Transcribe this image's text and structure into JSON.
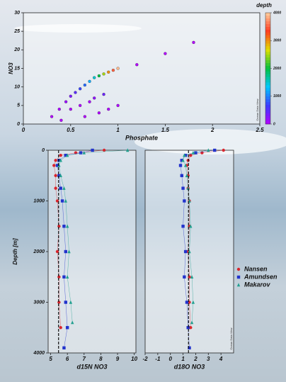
{
  "chart_data": [
    {
      "type": "scatter",
      "x_label": "Phosphate",
      "y_label": "NO3",
      "watermark": "Ocean Data View",
      "xlim": [
        0,
        2.5
      ],
      "xticks": [
        0,
        0.5,
        1,
        1.5,
        2,
        2.5
      ],
      "ylim": [
        0,
        30
      ],
      "yticks": [
        0,
        5,
        10,
        15,
        20,
        25,
        30
      ],
      "colorbar": {
        "label": "depth",
        "lim": [
          0,
          4000
        ],
        "ticks": [
          0,
          1000,
          2000,
          3000,
          4000
        ],
        "colors": [
          "#b400ff",
          "#3b3bff",
          "#00c8ff",
          "#00c040",
          "#e0e000",
          "#ff3b1f",
          "#ffd0a0"
        ]
      },
      "x": [
        0.3,
        0.38,
        0.45,
        0.5,
        0.55,
        0.6,
        0.65,
        0.7,
        0.75,
        0.8,
        0.85,
        0.9,
        0.95,
        1.0,
        0.5,
        0.6,
        0.7,
        0.8,
        0.9,
        1.0,
        0.4,
        0.65,
        0.75,
        0.85,
        1.2,
        1.5,
        1.8
      ],
      "y": [
        2,
        4,
        6,
        7.5,
        8.5,
        9.5,
        10.5,
        11.5,
        12.5,
        13,
        13.5,
        14,
        14.5,
        15,
        4,
        5,
        6,
        3,
        4,
        5,
        1,
        2,
        7,
        8,
        16,
        19,
        22
      ],
      "depth": [
        20,
        50,
        150,
        300,
        500,
        700,
        900,
        1200,
        1500,
        2000,
        2500,
        3000,
        3500,
        3900,
        30,
        40,
        60,
        20,
        25,
        35,
        10,
        15,
        200,
        400,
        10,
        5,
        5
      ]
    },
    {
      "type": "profile",
      "x_label": "d15N NO3",
      "y_label": "Depth [m]",
      "xlim": [
        4.85,
        10.1
      ],
      "xticks": [
        5,
        6,
        7,
        8,
        9,
        10
      ],
      "ylim": [
        0,
        4000
      ],
      "yticks": [
        0,
        1000,
        2000,
        3000,
        4000
      ],
      "series": [
        {
          "name": "Nansen",
          "color": "#d8262e",
          "marker": "circle",
          "x": [
            8.2,
            6.5,
            5.6,
            5.3,
            5.2,
            5.3,
            5.3,
            5.4,
            5.5,
            5.4,
            5.5,
            5.5,
            5.6
          ],
          "y": [
            0,
            50,
            100,
            200,
            300,
            500,
            750,
            1000,
            1500,
            2000,
            2500,
            3000,
            3500
          ]
        },
        {
          "name": "Amundsen",
          "color": "#2233cc",
          "marker": "square",
          "x": [
            7.5,
            6.8,
            5.9,
            5.5,
            5.4,
            5.5,
            5.6,
            5.7,
            5.8,
            5.9,
            5.8,
            5.9,
            6.0,
            5.8
          ],
          "y": [
            0,
            50,
            100,
            200,
            300,
            500,
            750,
            1000,
            1500,
            2000,
            2500,
            3000,
            3500,
            3900
          ]
        },
        {
          "name": "Makarov",
          "color": "#22a090",
          "marker": "triangle",
          "x": [
            9.6,
            7.0,
            6.0,
            5.6,
            5.5,
            5.6,
            5.8,
            5.9,
            6.0,
            6.1,
            6.0,
            6.2,
            6.3
          ],
          "y": [
            0,
            50,
            100,
            200,
            300,
            500,
            750,
            1000,
            1500,
            2000,
            2500,
            3000,
            3400
          ]
        }
      ]
    },
    {
      "type": "profile",
      "x_label": "d18O NO3",
      "watermark": "Ocean Data View",
      "xlim": [
        -2,
        5
      ],
      "xticks": [
        -2,
        -1,
        0,
        1,
        2,
        3,
        4
      ],
      "ylim": [
        0,
        4000
      ],
      "series": [
        {
          "color": "#d8262e",
          "marker": "circle",
          "x": [
            4.2,
            2.5,
            1.6,
            1.4,
            1.3,
            1.4,
            1.4,
            1.5,
            1.5,
            1.4,
            1.5,
            1.5,
            1.6
          ],
          "y": [
            0,
            50,
            100,
            200,
            300,
            500,
            750,
            1000,
            1500,
            2000,
            2500,
            3000,
            3500
          ]
        },
        {
          "color": "#2233cc",
          "marker": "square",
          "x": [
            3.5,
            2.0,
            1.2,
            0.9,
            0.8,
            0.9,
            1.0,
            1.1,
            1.0,
            1.2,
            1.1,
            1.3,
            1.4,
            1.5
          ],
          "y": [
            0,
            50,
            100,
            200,
            300,
            500,
            750,
            1000,
            1500,
            2000,
            2500,
            3000,
            3500,
            3900
          ]
        },
        {
          "color": "#22a090",
          "marker": "triangle",
          "x": [
            3.0,
            1.8,
            1.1,
            1.0,
            1.2,
            1.3,
            1.4,
            1.5,
            1.6,
            1.5,
            1.7,
            1.8,
            1.7
          ],
          "y": [
            0,
            50,
            100,
            200,
            300,
            500,
            750,
            1000,
            1500,
            2000,
            2500,
            3000,
            3400
          ]
        }
      ]
    }
  ]
}
